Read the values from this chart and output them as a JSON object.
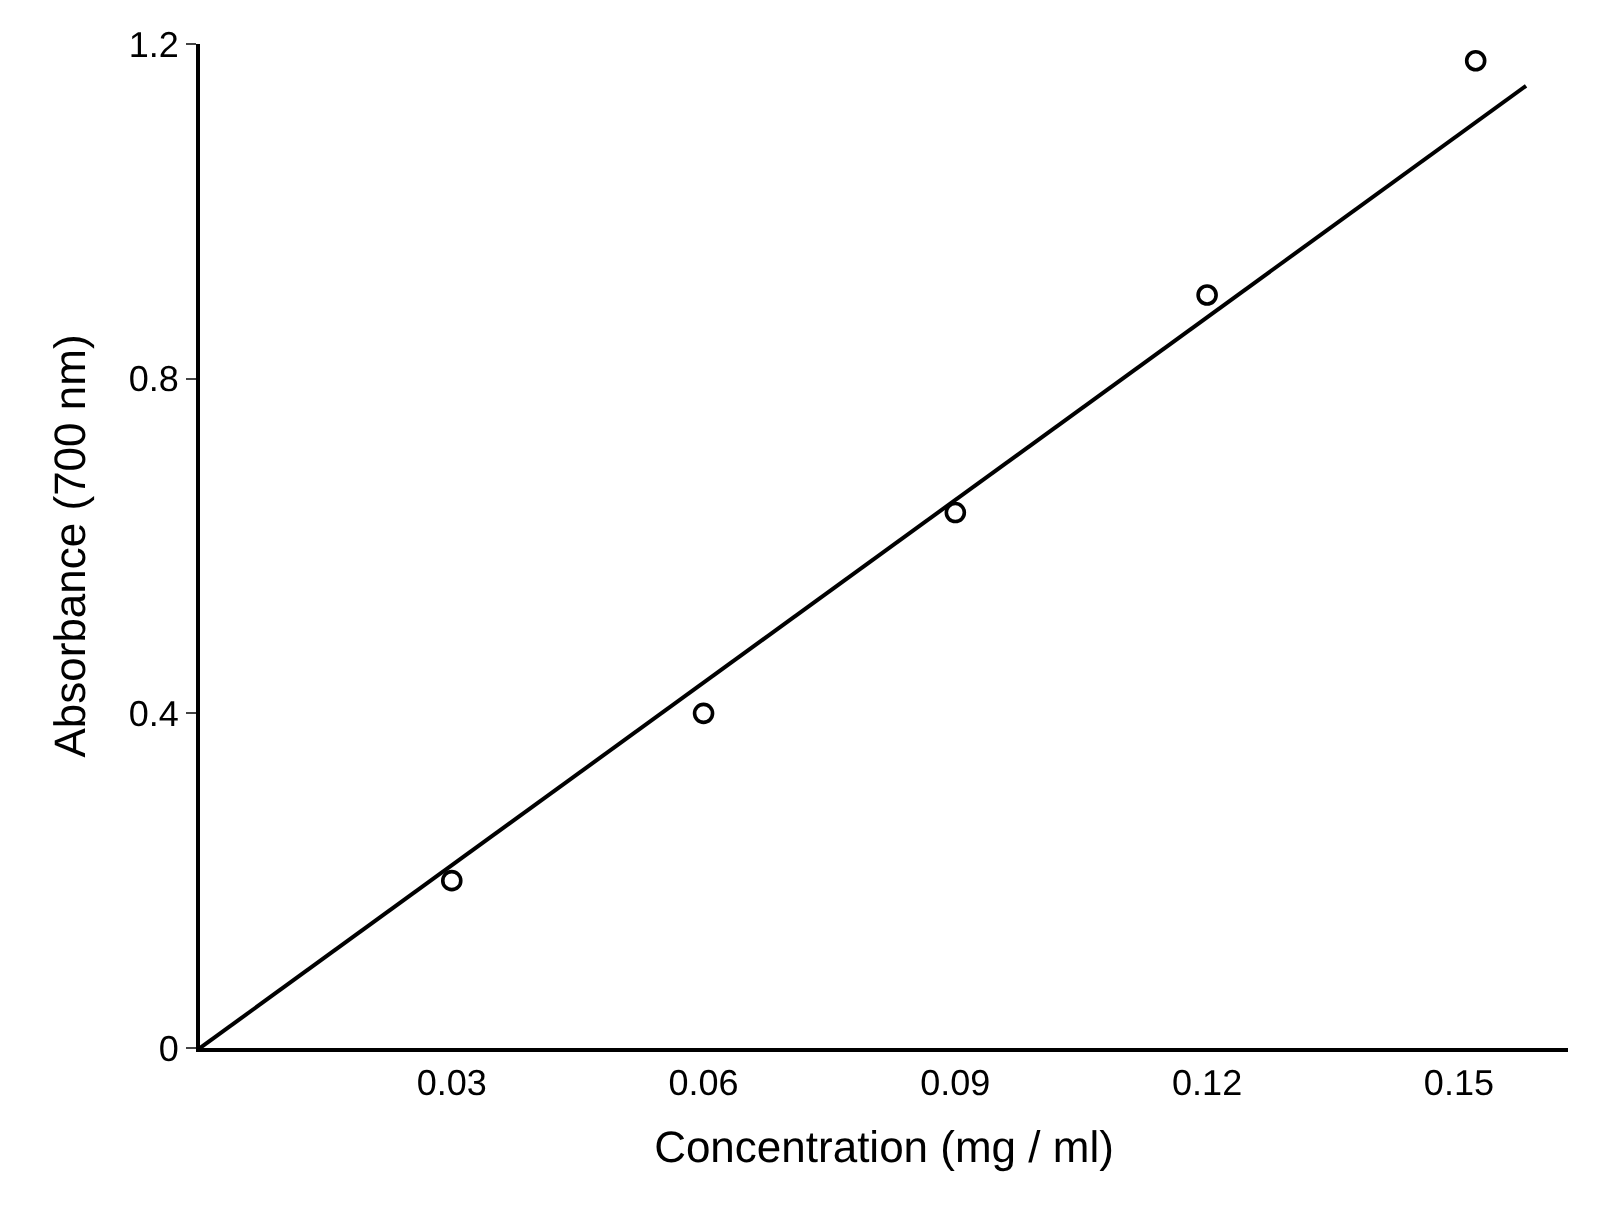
{
  "chart_data": {
    "type": "scatter",
    "xlabel": "Concentration (mg / ml)",
    "ylabel": "Absorbance (700 nm)",
    "series": [
      {
        "color": "#000000",
        "marker": "circle",
        "x": [
          0.03,
          0.06,
          0.09,
          0.12,
          0.152
        ],
        "values": [
          0.2,
          0.4,
          0.64,
          0.9,
          1.18
        ]
      },
      {
        "type": "line",
        "color": "#000000",
        "line_style": "solid",
        "x": [
          0,
          0.158
        ],
        "values": [
          0,
          1.15
        ]
      }
    ],
    "xlim": [
      0,
      0.163
    ],
    "ylim": [
      0,
      1.2
    ],
    "xticks": [
      0.03,
      0.06,
      0.09,
      0.12,
      0.15
    ],
    "yticks": [
      0,
      0.4,
      0.8,
      1.2
    ]
  }
}
